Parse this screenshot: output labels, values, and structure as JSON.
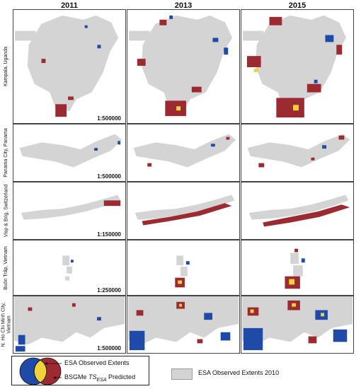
{
  "columns": [
    "2011",
    "2013",
    "2015"
  ],
  "rows": [
    {
      "label": "Kampala, Uganda",
      "scale": "1:500000"
    },
    {
      "label": "Panama City, Panama",
      "scale": "1:500000"
    },
    {
      "label": "Visp & Brig, Switzerland",
      "scale": "1:150000"
    },
    {
      "label": "Buôn Trấp, Vietnam",
      "scale": "1:250000"
    },
    {
      "label": "N. Ho Chi Minh City,\nVietnam",
      "scale": "1:500000"
    }
  ],
  "legend": {
    "esa_observed": "ESA Observed Extents",
    "bsgme_prefix": "BSGMe ",
    "bsgme_ts": "TS",
    "bsgme_sub": "ESA",
    "bsgme_suffix": " Predicted",
    "esa_2010": "ESA Observed Extents 2010"
  },
  "colors": {
    "esa_2010_gray": "#d4d4d4",
    "observed_blue": "#1f4aa8",
    "predicted_red": "#9b2b30",
    "overlap_yellow": "#f0d23a"
  }
}
